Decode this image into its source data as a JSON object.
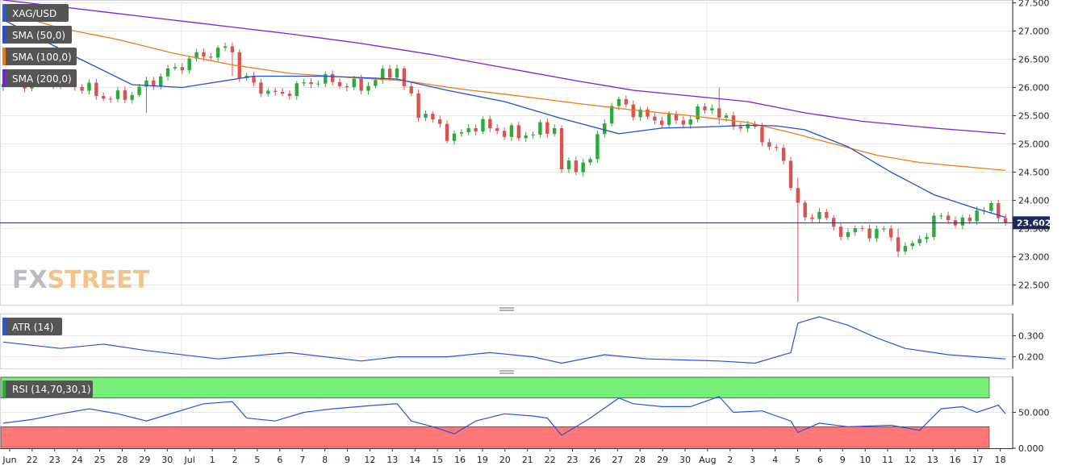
{
  "colors": {
    "up": "#2eaa3c",
    "down": "#d9534f",
    "sma50": "#1f4fd8",
    "sma100": "#f07a10",
    "sma200": "#7a1fd8",
    "atr": "#2255dd",
    "rsi": "#2255dd",
    "rsi_overbought_zone": "#77ee77",
    "rsi_oversold_zone": "#ff7777",
    "current_price_line": "#1a2a5a",
    "label_bg": "#555555",
    "grid": "#e4e6ec"
  },
  "chart_data": [
    {
      "type": "candlestick",
      "legend": [
        "XAG/USD",
        "SMA (50,0)",
        "SMA (100,0)",
        "SMA (200,0)"
      ],
      "watermark": {
        "fx": "FX",
        "street": "STREET"
      },
      "current_price": 23.602,
      "current_price_label": "23.602",
      "ylim": [
        22.15,
        27.55
      ],
      "yticks": [
        27.5,
        27.0,
        26.5,
        26.0,
        25.5,
        25.0,
        24.5,
        24.0,
        23.5,
        23.0,
        22.5
      ],
      "ytick_labels": [
        "27.500",
        "27.000",
        "26.500",
        "26.000",
        "25.500",
        "25.000",
        "24.500",
        "24.000",
        "23.500",
        "23.000",
        "22.500"
      ],
      "x_labels": [
        "Jun",
        "22",
        "23",
        "24",
        "25",
        "28",
        "29",
        "30",
        "Jul",
        "1",
        "2",
        "5",
        "6",
        "7",
        "8",
        "9",
        "12",
        "13",
        "14",
        "15",
        "16",
        "19",
        "20",
        "21",
        "22",
        "23",
        "26",
        "27",
        "28",
        "29",
        "30",
        "Aug",
        "2",
        "3",
        "4",
        "5",
        "6",
        "9",
        "10",
        "11",
        "12",
        "13",
        "16",
        "17",
        "18"
      ],
      "waypoints": [
        {
          "x": 0,
          "v": 26.0
        },
        {
          "x": 5,
          "v": 26.2
        },
        {
          "x": 10,
          "v": 26.05
        },
        {
          "x": 15,
          "v": 25.8
        },
        {
          "x": 18,
          "v": 25.9
        },
        {
          "x": 22,
          "v": 26.2
        },
        {
          "x": 27,
          "v": 26.55
        },
        {
          "x": 32,
          "v": 26.7
        },
        {
          "x": 33,
          "v": 26.2
        },
        {
          "x": 38,
          "v": 25.85
        },
        {
          "x": 44,
          "v": 26.15
        },
        {
          "x": 50,
          "v": 26.0
        },
        {
          "x": 55,
          "v": 26.35
        },
        {
          "x": 56,
          "v": 26.0
        },
        {
          "x": 58,
          "v": 25.6
        },
        {
          "x": 63,
          "v": 25.1
        },
        {
          "x": 66,
          "v": 25.35
        },
        {
          "x": 72,
          "v": 25.15
        },
        {
          "x": 77,
          "v": 25.3
        },
        {
          "x": 78,
          "v": 24.55
        },
        {
          "x": 82,
          "v": 24.7
        },
        {
          "x": 84,
          "v": 25.5
        },
        {
          "x": 86,
          "v": 25.75
        },
        {
          "x": 90,
          "v": 25.45
        },
        {
          "x": 95,
          "v": 25.4
        },
        {
          "x": 99,
          "v": 25.7
        },
        {
          "x": 100,
          "v": 25.45
        },
        {
          "x": 105,
          "v": 25.25
        },
        {
          "x": 109,
          "v": 24.7
        },
        {
          "x": 110,
          "v": 24.3
        },
        {
          "x": 112,
          "v": 23.6
        },
        {
          "x": 114,
          "v": 23.85
        },
        {
          "x": 116,
          "v": 23.45
        },
        {
          "x": 123,
          "v": 23.45
        },
        {
          "x": 126,
          "v": 23.1
        },
        {
          "x": 129,
          "v": 23.45
        },
        {
          "x": 131,
          "v": 23.75
        },
        {
          "x": 134,
          "v": 23.55
        },
        {
          "x": 136,
          "v": 23.85
        },
        {
          "x": 139,
          "v": 23.8
        },
        {
          "x": 140,
          "v": 23.6
        }
      ],
      "spikes": [
        {
          "x": 111,
          "low": 22.2,
          "high": 24.4
        },
        {
          "x": 100,
          "low": 25.35,
          "high": 26.0
        },
        {
          "x": 32,
          "low": 26.2,
          "high": 26.78
        },
        {
          "x": 20,
          "low": 25.55,
          "high": 26.1
        },
        {
          "x": 125,
          "low": 23.0,
          "high": 23.5
        }
      ],
      "sma50": [
        [
          0,
          27.2
        ],
        [
          10,
          26.55
        ],
        [
          18,
          26.05
        ],
        [
          25,
          26.0
        ],
        [
          35,
          26.2
        ],
        [
          45,
          26.2
        ],
        [
          55,
          26.15
        ],
        [
          62,
          25.95
        ],
        [
          70,
          25.75
        ],
        [
          78,
          25.45
        ],
        [
          86,
          25.18
        ],
        [
          92,
          25.28
        ],
        [
          98,
          25.3
        ],
        [
          104,
          25.33
        ],
        [
          108,
          25.32
        ],
        [
          112,
          25.25
        ],
        [
          118,
          24.95
        ],
        [
          124,
          24.5
        ],
        [
          130,
          24.1
        ],
        [
          136,
          23.85
        ],
        [
          140,
          23.7
        ]
      ],
      "sma100": [
        [
          0,
          27.35
        ],
        [
          8,
          27.05
        ],
        [
          16,
          26.85
        ],
        [
          24,
          26.6
        ],
        [
          32,
          26.4
        ],
        [
          40,
          26.25
        ],
        [
          48,
          26.18
        ],
        [
          56,
          26.12
        ],
        [
          64,
          25.97
        ],
        [
          72,
          25.85
        ],
        [
          80,
          25.72
        ],
        [
          88,
          25.6
        ],
        [
          96,
          25.5
        ],
        [
          104,
          25.38
        ],
        [
          110,
          25.2
        ],
        [
          116,
          25.0
        ],
        [
          122,
          24.8
        ],
        [
          128,
          24.67
        ],
        [
          134,
          24.6
        ],
        [
          140,
          24.53
        ]
      ],
      "sma200": [
        [
          0,
          27.55
        ],
        [
          10,
          27.4
        ],
        [
          20,
          27.25
        ],
        [
          30,
          27.1
        ],
        [
          40,
          26.95
        ],
        [
          50,
          26.78
        ],
        [
          60,
          26.58
        ],
        [
          70,
          26.35
        ],
        [
          80,
          26.12
        ],
        [
          88,
          25.95
        ],
        [
          96,
          25.85
        ],
        [
          104,
          25.75
        ],
        [
          112,
          25.55
        ],
        [
          120,
          25.4
        ],
        [
          130,
          25.28
        ],
        [
          140,
          25.18
        ]
      ]
    },
    {
      "type": "line",
      "legend": [
        "ATR (14)"
      ],
      "ylim": [
        0.145,
        0.405
      ],
      "yticks": [
        0.3,
        0.2
      ],
      "ytick_labels": [
        "0.300",
        "0.200"
      ],
      "values": [
        [
          0,
          0.27
        ],
        [
          8,
          0.24
        ],
        [
          14,
          0.26
        ],
        [
          20,
          0.23
        ],
        [
          30,
          0.19
        ],
        [
          40,
          0.22
        ],
        [
          50,
          0.18
        ],
        [
          55,
          0.2
        ],
        [
          62,
          0.2
        ],
        [
          68,
          0.22
        ],
        [
          74,
          0.2
        ],
        [
          78,
          0.17
        ],
        [
          84,
          0.21
        ],
        [
          90,
          0.19
        ],
        [
          100,
          0.18
        ],
        [
          105,
          0.17
        ],
        [
          110,
          0.22
        ],
        [
          111,
          0.36
        ],
        [
          114,
          0.39
        ],
        [
          118,
          0.35
        ],
        [
          122,
          0.29
        ],
        [
          126,
          0.24
        ],
        [
          132,
          0.21
        ],
        [
          136,
          0.2
        ],
        [
          140,
          0.19
        ]
      ]
    },
    {
      "type": "line",
      "legend": [
        "RSI (14,70,30,1)"
      ],
      "ylim": [
        0,
        100
      ],
      "overbought": 70,
      "oversold": 30,
      "yticks": [
        50,
        0
      ],
      "ytick_labels": [
        "50.000",
        "0.000"
      ],
      "values": [
        [
          0,
          35
        ],
        [
          4,
          40
        ],
        [
          8,
          48
        ],
        [
          12,
          55
        ],
        [
          16,
          48
        ],
        [
          20,
          38
        ],
        [
          24,
          50
        ],
        [
          28,
          62
        ],
        [
          32,
          65
        ],
        [
          34,
          42
        ],
        [
          38,
          38
        ],
        [
          42,
          50
        ],
        [
          46,
          55
        ],
        [
          52,
          60
        ],
        [
          55,
          62
        ],
        [
          57,
          38
        ],
        [
          60,
          30
        ],
        [
          63,
          20
        ],
        [
          66,
          38
        ],
        [
          70,
          48
        ],
        [
          74,
          45
        ],
        [
          76,
          42
        ],
        [
          78,
          18
        ],
        [
          82,
          42
        ],
        [
          86,
          70
        ],
        [
          88,
          62
        ],
        [
          92,
          58
        ],
        [
          96,
          58
        ],
        [
          100,
          72
        ],
        [
          102,
          50
        ],
        [
          106,
          52
        ],
        [
          110,
          38
        ],
        [
          111,
          22
        ],
        [
          114,
          35
        ],
        [
          118,
          30
        ],
        [
          124,
          32
        ],
        [
          128,
          25
        ],
        [
          131,
          55
        ],
        [
          134,
          58
        ],
        [
          136,
          50
        ],
        [
          139,
          60
        ],
        [
          140,
          48
        ]
      ]
    }
  ]
}
